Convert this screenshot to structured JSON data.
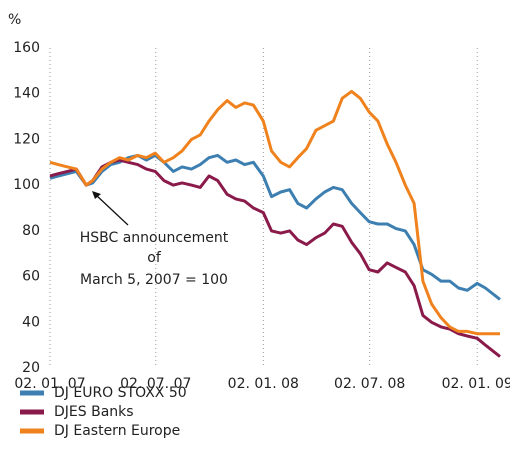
{
  "chart_data": {
    "type": "line",
    "y_label": "%",
    "annotation": [
      "HSBC announcement",
      "of",
      "March 5, 2007 = 100"
    ],
    "x": [
      "2007-01-02",
      "2007-01-16",
      "2007-02-01",
      "2007-02-16",
      "2007-03-05",
      "2007-03-16",
      "2007-04-01",
      "2007-04-16",
      "2007-05-01",
      "2007-05-16",
      "2007-06-01",
      "2007-06-16",
      "2007-07-01",
      "2007-07-16",
      "2007-08-01",
      "2007-08-16",
      "2007-09-01",
      "2007-09-16",
      "2007-10-01",
      "2007-10-16",
      "2007-11-01",
      "2007-11-16",
      "2007-12-01",
      "2007-12-16",
      "2008-01-02",
      "2008-01-16",
      "2008-02-01",
      "2008-02-16",
      "2008-03-01",
      "2008-03-16",
      "2008-04-01",
      "2008-04-16",
      "2008-05-01",
      "2008-05-16",
      "2008-06-01",
      "2008-06-16",
      "2008-07-01",
      "2008-07-16",
      "2008-08-01",
      "2008-08-16",
      "2008-09-01",
      "2008-09-16",
      "2008-10-01",
      "2008-10-16",
      "2008-11-01",
      "2008-11-16",
      "2008-12-01",
      "2008-12-16",
      "2009-01-02",
      "2009-01-16",
      "2009-02-10"
    ],
    "series": [
      {
        "name": "DJ EURO STOXX 50",
        "color": "#3d7fb0",
        "values": [
          103,
          104,
          105,
          106,
          100,
          101,
          106,
          109,
          110,
          112,
          113,
          111,
          113,
          110,
          106,
          108,
          107,
          109,
          112,
          113,
          110,
          111,
          109,
          110,
          104,
          95,
          97,
          98,
          92,
          90,
          94,
          97,
          99,
          98,
          92,
          88,
          84,
          83,
          83,
          81,
          80,
          74,
          63,
          61,
          58,
          58,
          55,
          54,
          57,
          55,
          50
        ]
      },
      {
        "name": "DJES Banks",
        "color": "#8a1a4a",
        "values": [
          104,
          105,
          106,
          107,
          100,
          102,
          108,
          110,
          111,
          110,
          109,
          107,
          106,
          102,
          100,
          101,
          100,
          99,
          104,
          102,
          96,
          94,
          93,
          90,
          88,
          80,
          79,
          80,
          76,
          74,
          77,
          79,
          83,
          82,
          75,
          70,
          63,
          62,
          66,
          64,
          62,
          56,
          43,
          40,
          38,
          37,
          35,
          34,
          33,
          30,
          25
        ]
      },
      {
        "name": "DJ Eastern Europe",
        "color": "#f0821e",
        "values": [
          110,
          109,
          108,
          107,
          100,
          102,
          107,
          110,
          112,
          111,
          113,
          112,
          114,
          110,
          112,
          115,
          120,
          122,
          128,
          133,
          137,
          134,
          136,
          135,
          128,
          115,
          110,
          108,
          112,
          116,
          124,
          126,
          128,
          138,
          141,
          138,
          132,
          128,
          118,
          110,
          100,
          92,
          58,
          48,
          42,
          38,
          36,
          36,
          35,
          35,
          35
        ]
      }
    ],
    "xlim": [
      "2007-01-02",
      "2009-02-10"
    ],
    "xticks": [
      {
        "value": "2007-01-02",
        "label": "02. 01. 07"
      },
      {
        "value": "2007-07-02",
        "label": "02. 07. 07"
      },
      {
        "value": "2008-01-02",
        "label": "02. 01. 08"
      },
      {
        "value": "2008-07-02",
        "label": "02. 07. 08"
      },
      {
        "value": "2009-01-02",
        "label": "02. 01. 09"
      }
    ],
    "ylim": [
      20,
      160
    ],
    "yticks": [
      20,
      40,
      60,
      80,
      100,
      120,
      140,
      160
    ],
    "grid": true
  }
}
